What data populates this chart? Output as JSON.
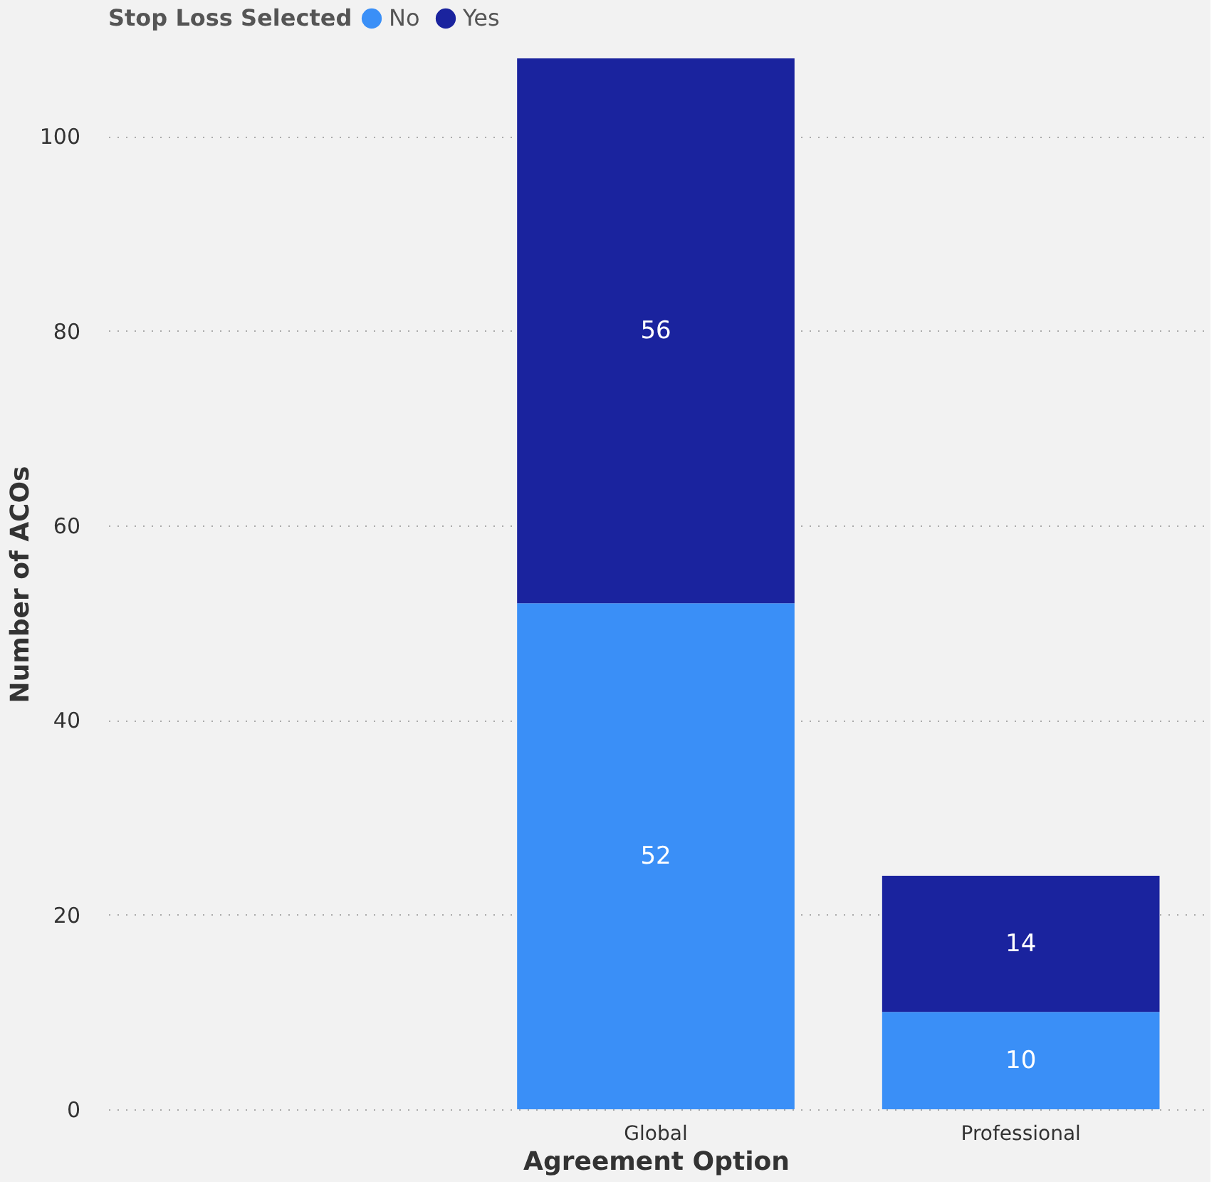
{
  "chart_data": {
    "type": "bar",
    "stacked": true,
    "legend_title": "Stop Loss Selected",
    "xlabel": "Agreement Option",
    "ylabel": "Number of ACOs",
    "categories": [
      null,
      "Global",
      "Professional"
    ],
    "series": [
      {
        "name": "No",
        "color": "#3a8ff7",
        "values": [
          null,
          52,
          10
        ]
      },
      {
        "name": "Yes",
        "color": "#1a239e",
        "values": [
          null,
          56,
          14
        ]
      }
    ],
    "ylim": [
      0,
      108
    ],
    "yticks": [
      0,
      20,
      40,
      60,
      80,
      100
    ],
    "grid": "y",
    "legend": "top left",
    "data_labels": true
  }
}
